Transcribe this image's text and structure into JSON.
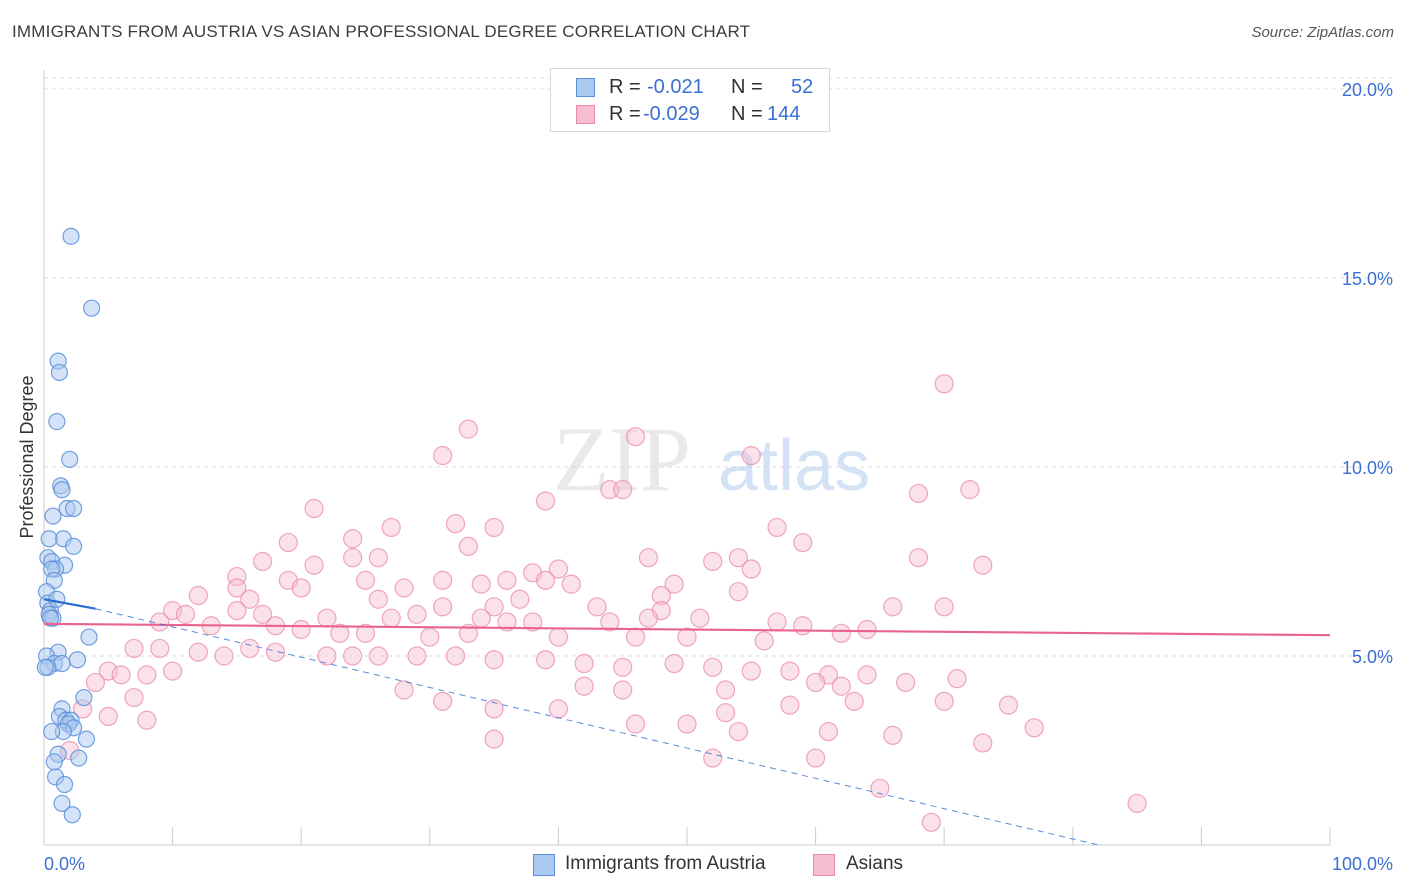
{
  "title": "IMMIGRANTS FROM AUSTRIA VS ASIAN PROFESSIONAL DEGREE CORRELATION CHART",
  "source": "Source: ZipAtlas.com",
  "watermark": {
    "zip": "ZIP",
    "atlas": "atlas"
  },
  "colors": {
    "blue_fill": "#aac8f0",
    "blue_stroke": "#5b8fd8",
    "blue_line": "#2a6fd6",
    "pink_fill": "#f7bdd0",
    "pink_stroke": "#e98aa9",
    "pink_line": "#e8648f",
    "axis_label": "#3b6fd1",
    "grid": "#dddddd"
  },
  "legend": {
    "rows": [
      {
        "r_label": "R =",
        "r_value": "-0.021",
        "n_label": "N =",
        "n_value": "52"
      },
      {
        "r_label": "R =",
        "r_value": "-0.029",
        "n_label": "N =",
        "n_value": "144"
      }
    ]
  },
  "bottom_legend": {
    "series1": "Immigrants from Austria",
    "series2": "Asians"
  },
  "chart_data": {
    "type": "scatter",
    "title": "IMMIGRANTS FROM AUSTRIA VS ASIAN PROFESSIONAL DEGREE CORRELATION CHART",
    "xlabel": "",
    "ylabel": "Professional Degree",
    "xlim": [
      0,
      100
    ],
    "ylim": [
      0,
      20.5
    ],
    "x_tick_labels": [
      "0.0%",
      "100.0%"
    ],
    "y_ticks": [
      5,
      10,
      15,
      20
    ],
    "y_tick_labels": [
      "5.0%",
      "10.0%",
      "15.0%",
      "20.0%"
    ],
    "grid": true,
    "legend_position": "top-center",
    "series": [
      {
        "name": "Immigrants from Austria",
        "r": -0.021,
        "n": 52,
        "trend_solid": [
          [
            0,
            6.5
          ],
          [
            4,
            6.25
          ]
        ],
        "trend_dashed": [
          [
            4,
            6.25
          ],
          [
            82,
            0
          ]
        ],
        "points": [
          [
            2.1,
            16.1
          ],
          [
            3.7,
            14.2
          ],
          [
            1.1,
            12.8
          ],
          [
            1.2,
            12.5
          ],
          [
            1.0,
            11.2
          ],
          [
            2.0,
            10.2
          ],
          [
            1.3,
            9.5
          ],
          [
            1.4,
            9.4
          ],
          [
            1.8,
            8.9
          ],
          [
            2.3,
            8.9
          ],
          [
            0.7,
            8.7
          ],
          [
            1.5,
            8.1
          ],
          [
            0.4,
            8.1
          ],
          [
            2.3,
            7.9
          ],
          [
            0.3,
            7.6
          ],
          [
            0.6,
            7.5
          ],
          [
            1.6,
            7.4
          ],
          [
            0.9,
            7.3
          ],
          [
            0.6,
            7.3
          ],
          [
            0.8,
            7.0
          ],
          [
            0.2,
            6.7
          ],
          [
            0.3,
            6.4
          ],
          [
            0.5,
            6.2
          ],
          [
            0.4,
            6.1
          ],
          [
            0.7,
            6.0
          ],
          [
            0.5,
            6.0
          ],
          [
            3.5,
            5.5
          ],
          [
            1.1,
            5.1
          ],
          [
            0.2,
            5.0
          ],
          [
            2.6,
            4.9
          ],
          [
            0.8,
            4.8
          ],
          [
            1.4,
            4.8
          ],
          [
            0.3,
            4.7
          ],
          [
            3.1,
            3.9
          ],
          [
            1.4,
            3.6
          ],
          [
            1.2,
            3.4
          ],
          [
            1.7,
            3.3
          ],
          [
            2.1,
            3.3
          ],
          [
            1.9,
            3.2
          ],
          [
            2.3,
            3.1
          ],
          [
            1.5,
            3.0
          ],
          [
            3.3,
            2.8
          ],
          [
            1.1,
            2.4
          ],
          [
            2.7,
            2.3
          ],
          [
            0.9,
            1.8
          ],
          [
            1.6,
            1.6
          ],
          [
            1.4,
            1.1
          ],
          [
            2.2,
            0.8
          ],
          [
            0.1,
            4.7
          ],
          [
            0.6,
            3.0
          ],
          [
            0.8,
            2.2
          ],
          [
            1.0,
            6.5
          ]
        ]
      },
      {
        "name": "Asians",
        "r": -0.029,
        "n": 144,
        "trend": [
          [
            0,
            5.85
          ],
          [
            100,
            5.55
          ]
        ],
        "points": [
          [
            70,
            12.2
          ],
          [
            33,
            11.0
          ],
          [
            31,
            10.3
          ],
          [
            46,
            10.8
          ],
          [
            55,
            10.3
          ],
          [
            72,
            9.4
          ],
          [
            68,
            9.3
          ],
          [
            44,
            9.4
          ],
          [
            39,
            9.1
          ],
          [
            45,
            9.4
          ],
          [
            21,
            8.9
          ],
          [
            27,
            8.4
          ],
          [
            32,
            8.5
          ],
          [
            35,
            8.4
          ],
          [
            57,
            8.4
          ],
          [
            59,
            8.0
          ],
          [
            24,
            8.1
          ],
          [
            19,
            8.0
          ],
          [
            33,
            7.9
          ],
          [
            54,
            7.6
          ],
          [
            68,
            7.6
          ],
          [
            73,
            7.4
          ],
          [
            47,
            7.6
          ],
          [
            52,
            7.5
          ],
          [
            55,
            7.3
          ],
          [
            17,
            7.5
          ],
          [
            21,
            7.4
          ],
          [
            24,
            7.6
          ],
          [
            26,
            7.6
          ],
          [
            38,
            7.2
          ],
          [
            40,
            7.3
          ],
          [
            15,
            7.1
          ],
          [
            19,
            7.0
          ],
          [
            25,
            7.0
          ],
          [
            31,
            7.0
          ],
          [
            36,
            7.0
          ],
          [
            39,
            7.0
          ],
          [
            41,
            6.9
          ],
          [
            49,
            6.9
          ],
          [
            15,
            6.8
          ],
          [
            20,
            6.8
          ],
          [
            28,
            6.8
          ],
          [
            34,
            6.9
          ],
          [
            48,
            6.6
          ],
          [
            54,
            6.7
          ],
          [
            12,
            6.6
          ],
          [
            16,
            6.5
          ],
          [
            26,
            6.5
          ],
          [
            31,
            6.3
          ],
          [
            35,
            6.3
          ],
          [
            37,
            6.5
          ],
          [
            43,
            6.3
          ],
          [
            48,
            6.2
          ],
          [
            66,
            6.3
          ],
          [
            70,
            6.3
          ],
          [
            10,
            6.2
          ],
          [
            11,
            6.1
          ],
          [
            15,
            6.2
          ],
          [
            17,
            6.1
          ],
          [
            22,
            6.0
          ],
          [
            27,
            6.0
          ],
          [
            29,
            6.1
          ],
          [
            34,
            6.0
          ],
          [
            36,
            5.9
          ],
          [
            38,
            5.9
          ],
          [
            44,
            5.9
          ],
          [
            47,
            6.0
          ],
          [
            51,
            6.0
          ],
          [
            57,
            5.9
          ],
          [
            59,
            5.8
          ],
          [
            64,
            5.7
          ],
          [
            9,
            5.9
          ],
          [
            13,
            5.8
          ],
          [
            18,
            5.8
          ],
          [
            20,
            5.7
          ],
          [
            23,
            5.6
          ],
          [
            25,
            5.6
          ],
          [
            30,
            5.5
          ],
          [
            33,
            5.6
          ],
          [
            40,
            5.5
          ],
          [
            46,
            5.5
          ],
          [
            50,
            5.5
          ],
          [
            56,
            5.4
          ],
          [
            62,
            5.6
          ],
          [
            7,
            5.2
          ],
          [
            9,
            5.2
          ],
          [
            12,
            5.1
          ],
          [
            14,
            5.0
          ],
          [
            16,
            5.2
          ],
          [
            18,
            5.1
          ],
          [
            22,
            5.0
          ],
          [
            24,
            5.0
          ],
          [
            26,
            5.0
          ],
          [
            29,
            5.0
          ],
          [
            32,
            5.0
          ],
          [
            35,
            4.9
          ],
          [
            39,
            4.9
          ],
          [
            42,
            4.8
          ],
          [
            45,
            4.7
          ],
          [
            49,
            4.8
          ],
          [
            52,
            4.7
          ],
          [
            55,
            4.6
          ],
          [
            58,
            4.6
          ],
          [
            61,
            4.5
          ],
          [
            64,
            4.5
          ],
          [
            5,
            4.6
          ],
          [
            6,
            4.5
          ],
          [
            8,
            4.5
          ],
          [
            10,
            4.6
          ],
          [
            4,
            4.3
          ],
          [
            28,
            4.1
          ],
          [
            42,
            4.2
          ],
          [
            45,
            4.1
          ],
          [
            53,
            4.1
          ],
          [
            60,
            4.3
          ],
          [
            62,
            4.2
          ],
          [
            67,
            4.3
          ],
          [
            71,
            4.4
          ],
          [
            7,
            3.9
          ],
          [
            31,
            3.8
          ],
          [
            35,
            3.6
          ],
          [
            40,
            3.6
          ],
          [
            53,
            3.5
          ],
          [
            58,
            3.7
          ],
          [
            63,
            3.8
          ],
          [
            70,
            3.8
          ],
          [
            75,
            3.7
          ],
          [
            3,
            3.6
          ],
          [
            5,
            3.4
          ],
          [
            8,
            3.3
          ],
          [
            46,
            3.2
          ],
          [
            50,
            3.2
          ],
          [
            54,
            3.0
          ],
          [
            61,
            3.0
          ],
          [
            66,
            2.9
          ],
          [
            73,
            2.7
          ],
          [
            77,
            3.1
          ],
          [
            35,
            2.8
          ],
          [
            52,
            2.3
          ],
          [
            60,
            2.3
          ],
          [
            65,
            1.5
          ],
          [
            69,
            0.6
          ],
          [
            85,
            1.1
          ],
          [
            2,
            2.5
          ]
        ]
      }
    ]
  }
}
